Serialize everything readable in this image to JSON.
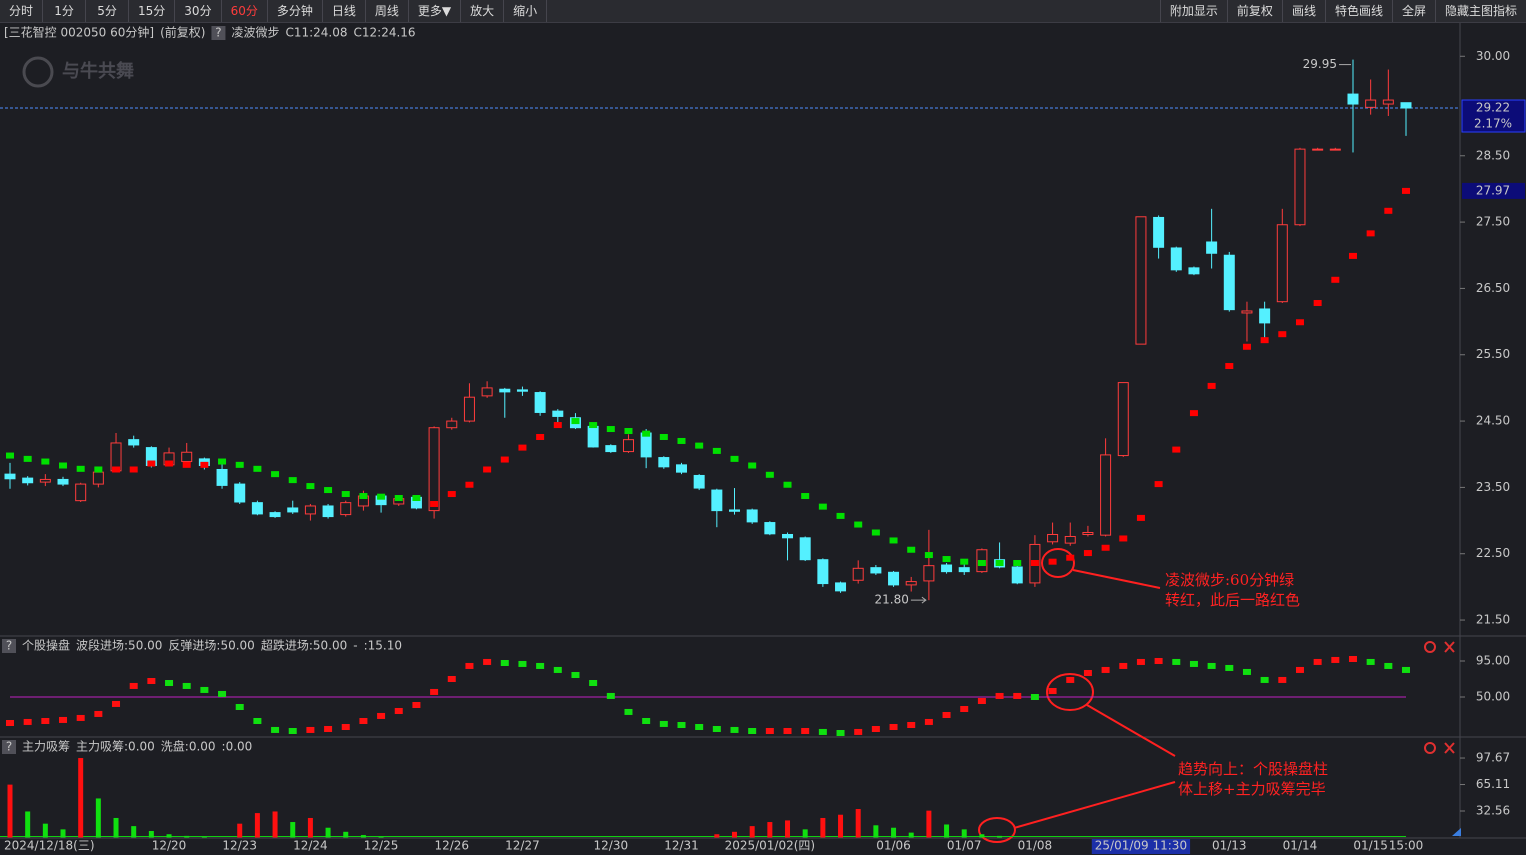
{
  "toolbar": {
    "left": [
      "分时",
      "1分",
      "5分",
      "15分",
      "30分",
      "60分",
      "多分钟",
      "日线",
      "周线",
      "更多▼",
      "放大",
      "缩小"
    ],
    "right": [
      "附加显示",
      "前复权",
      "画线",
      "特色画线",
      "全屏",
      "隐藏主图指标"
    ],
    "active_index": 5
  },
  "help": "?",
  "watermark": "与牛共舞",
  "callouts": [
    {
      "lines": [
        "凌波微步:60分钟绿",
        "转红，此后一路红色"
      ]
    },
    {
      "lines": [
        "趋势向上：个股操盘柱",
        "体上移+主力吸筹完毕"
      ]
    }
  ],
  "chart_data": [
    {
      "type": "candlestick",
      "title": "[三花智控 002050 60分钟]",
      "subtitle": "(前复权)",
      "indicator": "凌波微步",
      "legend": [
        {
          "text": "C11:24.08",
          "color": "#e8e8e8"
        },
        {
          "text": "C12:24.16",
          "color": "#ffff33"
        }
      ],
      "up_color": "#ff3c3c",
      "down_color": "#54f0ff",
      "categories": [
        "2024/12/18(三)",
        null,
        null,
        null,
        null,
        null,
        null,
        null,
        null,
        "12/20",
        null,
        null,
        null,
        "12/23",
        null,
        null,
        null,
        "12/24",
        null,
        null,
        null,
        "12/25",
        null,
        null,
        null,
        "12/26",
        null,
        null,
        null,
        "12/27",
        null,
        null,
        null,
        null,
        "12/30",
        null,
        null,
        null,
        "12/31",
        null,
        null,
        null,
        null,
        "2025/01/02(四)",
        null,
        null,
        null,
        null,
        null,
        null,
        "01/06",
        null,
        null,
        null,
        "01/07",
        null,
        null,
        null,
        "01/08",
        null,
        null,
        null,
        null,
        null,
        "25/01/09 11:30",
        null,
        null,
        null,
        null,
        "01/13",
        null,
        null,
        null,
        "01/14",
        null,
        null,
        null,
        "01/15",
        null,
        "15:00"
      ],
      "crosshair_index": 64,
      "open": [
        23.7,
        23.64,
        23.58,
        23.62,
        23.3,
        23.55,
        23.75,
        24.22,
        24.1,
        23.84,
        23.89,
        23.93,
        23.77,
        23.55,
        23.27,
        23.12,
        23.19,
        23.1,
        23.22,
        23.09,
        23.22,
        23.37,
        23.25,
        23.35,
        23.15,
        24.4,
        24.5,
        24.88,
        24.98,
        24.97,
        24.93,
        24.65,
        24.55,
        24.42,
        24.13,
        24.04,
        24.32,
        23.95,
        23.84,
        23.68,
        23.46,
        23.16,
        23.16,
        22.97,
        22.79,
        22.74,
        22.41,
        22.06,
        22.1,
        22.29,
        22.22,
        22.03,
        22.09,
        22.33,
        22.29,
        22.23,
        22.41,
        22.3,
        22.06,
        22.68,
        22.66,
        22.79,
        22.78,
        23.98,
        25.66,
        27.57,
        27.11,
        26.81,
        27.2,
        27.0,
        26.13,
        26.19,
        26.3,
        27.46,
        28.6,
        28.6,
        29.43,
        29.23,
        29.28,
        29.3
      ],
      "high": [
        23.87,
        23.67,
        23.7,
        23.66,
        23.57,
        23.76,
        24.32,
        24.28,
        24.12,
        24.1,
        24.17,
        23.95,
        23.87,
        23.58,
        23.3,
        23.14,
        23.3,
        23.25,
        23.25,
        23.3,
        23.45,
        23.4,
        23.37,
        23.37,
        24.42,
        24.55,
        25.07,
        25.1,
        25.0,
        25.02,
        24.95,
        24.68,
        24.62,
        24.44,
        24.15,
        24.3,
        24.38,
        23.97,
        23.87,
        23.7,
        23.48,
        23.49,
        23.18,
        22.99,
        22.82,
        22.76,
        22.43,
        22.08,
        22.4,
        22.33,
        22.24,
        22.15,
        22.86,
        22.36,
        22.36,
        22.58,
        22.67,
        22.32,
        22.78,
        22.97,
        22.97,
        22.92,
        24.24,
        25.08,
        27.58,
        27.6,
        27.13,
        26.83,
        27.7,
        27.05,
        26.3,
        26.3,
        27.7,
        28.62,
        28.62,
        28.62,
        29.95,
        29.65,
        29.8,
        29.3
      ],
      "low": [
        23.48,
        23.53,
        23.52,
        23.52,
        23.28,
        23.5,
        23.73,
        24.1,
        23.8,
        23.82,
        23.86,
        23.77,
        23.48,
        23.25,
        23.08,
        23.04,
        23.1,
        23.0,
        23.03,
        23.06,
        23.15,
        23.12,
        23.22,
        23.17,
        23.03,
        24.37,
        24.48,
        24.85,
        24.55,
        24.88,
        24.58,
        24.4,
        24.38,
        24.1,
        24.02,
        24.02,
        23.79,
        23.78,
        23.7,
        23.46,
        22.9,
        23.09,
        22.95,
        22.78,
        22.4,
        22.39,
        22.0,
        21.91,
        22.05,
        22.18,
        22.0,
        21.93,
        21.8,
        22.2,
        22.18,
        22.21,
        22.28,
        22.04,
        22.0,
        22.64,
        22.62,
        22.76,
        22.76,
        23.96,
        25.66,
        26.95,
        26.75,
        26.7,
        26.8,
        26.15,
        25.7,
        25.75,
        26.28,
        27.44,
        28.58,
        28.58,
        28.55,
        29.12,
        29.1,
        28.8
      ],
      "close": [
        23.63,
        23.57,
        23.62,
        23.55,
        23.55,
        23.73,
        24.17,
        24.14,
        23.83,
        24.02,
        24.03,
        23.83,
        23.53,
        23.28,
        23.1,
        23.06,
        23.13,
        23.22,
        23.06,
        23.27,
        23.37,
        23.24,
        23.33,
        23.19,
        24.4,
        24.5,
        24.86,
        25.0,
        24.94,
        24.95,
        24.63,
        24.57,
        24.4,
        24.11,
        24.04,
        24.22,
        23.96,
        23.81,
        23.73,
        23.49,
        23.15,
        23.14,
        22.98,
        22.8,
        22.74,
        22.41,
        22.05,
        21.94,
        22.28,
        22.21,
        22.03,
        22.08,
        22.32,
        22.23,
        22.23,
        22.56,
        22.3,
        22.06,
        22.64,
        22.79,
        22.76,
        22.82,
        23.99,
        25.08,
        27.58,
        27.12,
        26.78,
        26.72,
        27.03,
        26.18,
        26.16,
        25.98,
        27.46,
        28.6,
        28.6,
        28.6,
        29.28,
        29.34,
        29.34,
        29.22
      ],
      "steps": [
        {
          "color": "#00e000",
          "values": [
            23.98,
            23.93,
            23.89,
            23.83,
            23.78,
            23.77,
            null,
            null,
            null,
            null,
            null,
            null,
            23.89,
            23.84,
            23.78,
            23.7,
            23.61,
            23.52,
            23.46,
            23.4,
            23.37,
            23.36,
            23.34,
            23.34,
            null,
            null,
            null,
            null,
            null,
            null,
            null,
            null,
            24.5,
            24.44,
            24.38,
            24.35,
            24.31,
            24.26,
            24.2,
            24.13,
            24.05,
            23.93,
            23.83,
            23.69,
            23.54,
            23.37,
            23.21,
            23.07,
            22.94,
            22.82,
            22.7,
            22.56,
            22.48,
            22.42,
            22.38,
            22.36,
            22.36,
            22.36,
            null,
            null,
            null,
            null,
            null,
            null,
            null,
            null,
            null,
            null,
            null,
            null,
            null,
            null,
            null,
            null,
            null,
            null,
            null,
            null,
            null,
            null
          ]
        },
        {
          "color": "#ff0000",
          "values": [
            null,
            null,
            null,
            null,
            null,
            null,
            23.77,
            23.77,
            23.86,
            23.86,
            23.84,
            23.84,
            null,
            null,
            null,
            null,
            null,
            null,
            null,
            null,
            null,
            null,
            null,
            null,
            23.25,
            23.4,
            23.54,
            23.77,
            23.92,
            24.1,
            24.26,
            24.44,
            null,
            null,
            null,
            null,
            null,
            null,
            null,
            null,
            null,
            null,
            null,
            null,
            null,
            null,
            null,
            null,
            null,
            null,
            null,
            null,
            null,
            null,
            null,
            null,
            null,
            null,
            22.36,
            22.38,
            22.44,
            22.51,
            22.59,
            22.73,
            23.04,
            23.55,
            24.07,
            24.62,
            25.03,
            25.33,
            25.62,
            25.72,
            25.81,
            25.99,
            26.28,
            26.63,
            26.99,
            27.33,
            27.67,
            27.97
          ]
        }
      ],
      "current": {
        "value": 29.22,
        "change": "2.17%"
      },
      "high_mark": 29.95,
      "low_mark": {
        "value": 21.8,
        "label": "21.80"
      },
      "ylim": [
        21.35,
        30.17
      ],
      "yticks": [
        {
          "value": 30,
          "label": "30.00"
        },
        {
          "value": 28.5,
          "label": "28.50"
        },
        {
          "value": 27.5,
          "label": "27.50"
        },
        {
          "value": 26.5,
          "label": "26.50"
        },
        {
          "value": 25.5,
          "label": "25.50"
        },
        {
          "value": 24.5,
          "label": "24.50"
        },
        {
          "value": 23.5,
          "label": "23.50"
        },
        {
          "value": 22.5,
          "label": "22.50"
        },
        {
          "value": 21.5,
          "label": "21.50"
        }
      ]
    },
    {
      "type": "dots",
      "title": "个股操盘",
      "legend": [
        {
          "text": "波段进场:50.00",
          "color": "#e8e8e8"
        },
        {
          "text": "反弹进场:50.00",
          "color": "#ffff33"
        },
        {
          "text": "超跌进场:50.00",
          "color": "#ff40ff"
        },
        {
          "text": "-",
          "color": "#ff3030"
        },
        {
          "text": ":15.10",
          "color": "#40ff40"
        }
      ],
      "up_color": "#ff1010",
      "down_color": "#10e010",
      "ref_line": 50,
      "ref_color": "#c020c0",
      "values": [
        17.5,
        18.8,
        20,
        21.3,
        23.8,
        28.8,
        41.3,
        63.8,
        70,
        67.5,
        63.8,
        58.8,
        53.8,
        37.5,
        20,
        8.8,
        7.5,
        8.8,
        10,
        12.5,
        20,
        26.3,
        32.5,
        40,
        56.3,
        72.5,
        88.8,
        93.8,
        92.5,
        91.3,
        88.8,
        83.8,
        77.5,
        67.5,
        51.3,
        31.3,
        20,
        16.3,
        15,
        12.5,
        10,
        8.8,
        7.5,
        7.5,
        7.5,
        7.5,
        6.3,
        5,
        6.3,
        10,
        12.5,
        15,
        18.8,
        27.5,
        35,
        45,
        51.3,
        51.3,
        50,
        57.5,
        71.3,
        80,
        83.8,
        88.8,
        93.8,
        95,
        93.8,
        91.3,
        88.8,
        86.3,
        81.3,
        71.3,
        71.3,
        83.8,
        93.8,
        96.3,
        97.5,
        93.8,
        88.8,
        83.8
      ],
      "ylim": [
        2.5,
        108.75
      ],
      "yticks": [
        {
          "value": 95,
          "label": "95.00"
        },
        {
          "value": 50,
          "label": "50.00"
        }
      ]
    },
    {
      "type": "bar",
      "title": "主力吸筹",
      "legend": [
        {
          "text": "主力吸筹:0.00",
          "color": "#ff3030"
        },
        {
          "text": "洗盘:0.00",
          "color": "#40ff40"
        },
        {
          "text": ":0.00",
          "color": "#e8e8e8"
        }
      ],
      "up_color": "#ff1010",
      "down_color": "#10e010",
      "values": [
        65,
        32,
        17,
        10,
        97.67,
        48,
        24,
        14,
        8,
        4,
        2,
        1,
        0,
        17,
        30,
        32,
        19,
        24,
        12,
        7,
        3,
        1,
        0,
        0,
        0,
        0,
        0,
        0,
        0,
        0,
        0,
        0,
        0,
        0,
        0,
        0,
        0,
        0,
        0,
        0,
        4,
        7,
        14,
        19,
        21,
        10,
        24,
        28,
        35,
        15,
        12,
        6,
        33,
        16,
        10,
        4,
        2,
        0,
        0,
        0,
        0,
        0,
        0,
        0,
        0,
        0,
        0,
        0,
        0,
        0,
        0,
        0,
        0,
        0,
        0,
        0,
        0,
        0,
        0,
        0
      ],
      "ylim": [
        0,
        110
      ],
      "yticks": [
        32.56,
        65.11,
        97.67
      ]
    }
  ]
}
